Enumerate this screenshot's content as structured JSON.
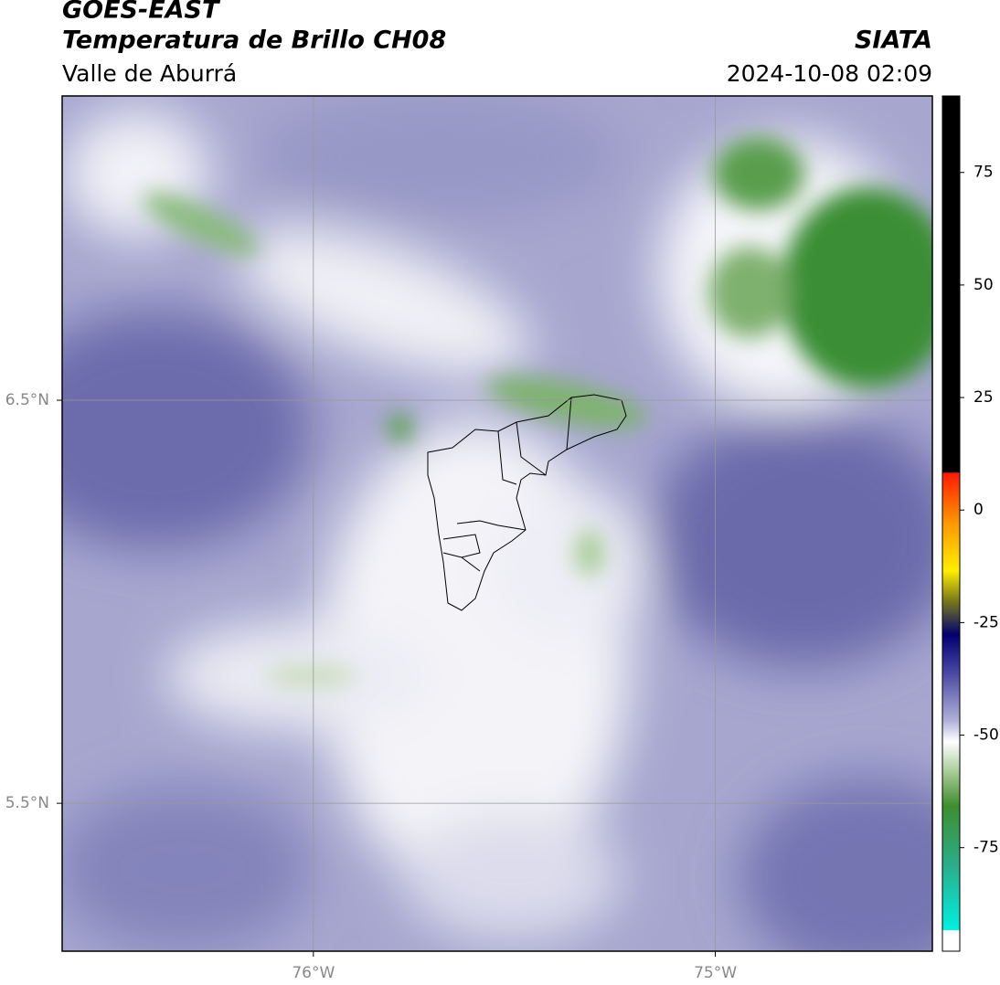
{
  "header": {
    "title": "GOES-EAST",
    "subtitle": "Temperatura de Brillo CH08",
    "region": "Valle de Aburrá",
    "source": "SIATA",
    "datetime": "2024-10-08 02:09"
  },
  "map": {
    "xlim": [
      -76.625,
      -74.46
    ],
    "ylim": [
      5.133,
      7.255
    ],
    "xticks": [
      {
        "value": -76,
        "label": "76°W"
      },
      {
        "value": -75,
        "label": "75°W"
      }
    ],
    "yticks": [
      {
        "value": 6.5,
        "label": "6.5°N"
      },
      {
        "value": 5.5,
        "label": "5.5°N"
      }
    ],
    "grid": true
  },
  "colorbar": {
    "lim": [
      -98,
      92
    ],
    "ticks": [
      -75,
      -50,
      -25,
      0,
      25,
      50,
      75
    ]
  }
}
